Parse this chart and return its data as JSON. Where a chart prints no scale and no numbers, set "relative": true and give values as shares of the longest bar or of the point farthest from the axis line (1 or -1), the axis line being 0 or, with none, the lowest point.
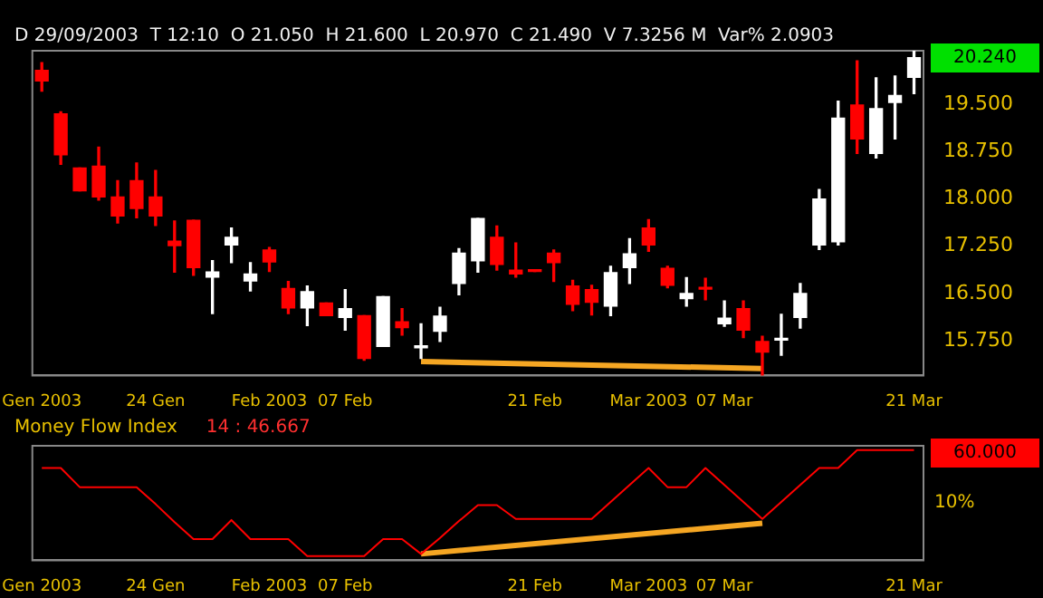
{
  "chart_data": [
    {
      "type": "candlestick",
      "subtitle": "D 29/09/2003  T 12:10  O 21.050  H 21.600  L 20.970  C 21.490  V 7.3256 M  Var% 2.0903",
      "categories": [
        "Gen 2003",
        null,
        null,
        null,
        null,
        null,
        "24 Gen",
        null,
        null,
        null,
        null,
        null,
        "Feb 2003",
        null,
        null,
        null,
        "07 Feb",
        null,
        null,
        null,
        null,
        null,
        null,
        null,
        null,
        null,
        "21 Feb",
        null,
        null,
        null,
        null,
        null,
        "Mar 2003",
        null,
        null,
        null,
        "07 Mar",
        null,
        null,
        null,
        null,
        null,
        null,
        null,
        null,
        null,
        "21 Mar"
      ],
      "ohlc": [
        [
          20.04,
          20.16,
          19.71,
          19.87
        ],
        [
          19.35,
          19.38,
          18.55,
          18.7
        ],
        [
          18.49,
          18.49,
          18.13,
          18.13
        ],
        [
          18.52,
          18.82,
          17.98,
          18.03
        ],
        [
          18.03,
          18.29,
          17.62,
          17.73
        ],
        [
          18.29,
          18.57,
          17.7,
          17.85
        ],
        [
          18.03,
          18.45,
          17.58,
          17.73
        ],
        [
          17.33,
          17.65,
          16.84,
          17.26
        ],
        [
          17.66,
          17.66,
          16.79,
          16.91
        ],
        [
          16.76,
          17.02,
          16.18,
          16.84
        ],
        [
          17.27,
          17.54,
          16.99,
          17.39
        ],
        [
          16.7,
          16.99,
          16.54,
          16.81
        ],
        [
          17.19,
          17.23,
          16.85,
          17.0
        ],
        [
          16.58,
          16.69,
          16.18,
          16.27
        ],
        [
          16.27,
          16.62,
          15.99,
          16.53
        ],
        [
          16.35,
          16.35,
          16.15,
          16.15
        ],
        [
          16.12,
          16.56,
          15.92,
          16.26
        ],
        [
          16.15,
          16.15,
          15.44,
          15.47
        ],
        [
          15.66,
          16.45,
          15.66,
          16.45
        ],
        [
          16.05,
          16.26,
          15.84,
          15.96
        ],
        [
          15.64,
          16.02,
          15.47,
          15.64
        ],
        [
          15.9,
          16.28,
          15.74,
          16.14
        ],
        [
          16.66,
          17.21,
          16.48,
          17.14
        ],
        [
          17.02,
          17.69,
          16.84,
          17.69
        ],
        [
          17.39,
          17.57,
          16.87,
          16.96
        ],
        [
          16.87,
          17.3,
          16.76,
          16.81
        ],
        [
          16.86,
          16.86,
          16.85,
          16.85
        ],
        [
          17.14,
          17.19,
          16.69,
          16.99
        ],
        [
          16.62,
          16.71,
          16.23,
          16.33
        ],
        [
          16.56,
          16.63,
          16.16,
          16.36
        ],
        [
          16.3,
          16.93,
          16.15,
          16.83
        ],
        [
          16.91,
          17.37,
          16.66,
          17.13
        ],
        [
          17.54,
          17.67,
          17.17,
          17.27
        ],
        [
          16.9,
          16.93,
          16.59,
          16.63
        ],
        [
          16.42,
          16.75,
          16.3,
          16.5
        ],
        [
          16.58,
          16.74,
          16.4,
          16.57
        ],
        [
          16.02,
          16.38,
          15.98,
          16.11
        ],
        [
          16.26,
          16.38,
          15.8,
          15.92
        ],
        [
          15.74,
          15.82,
          15.19,
          15.57
        ],
        [
          15.76,
          16.17,
          15.52,
          15.76
        ],
        [
          16.12,
          16.66,
          15.95,
          16.5
        ],
        [
          17.27,
          18.15,
          17.2,
          18.0
        ],
        [
          17.32,
          19.55,
          17.27,
          19.28
        ],
        [
          19.49,
          20.19,
          18.72,
          18.95
        ],
        [
          18.72,
          19.92,
          18.65,
          19.43
        ],
        [
          19.53,
          19.95,
          18.95,
          19.64
        ],
        [
          19.93,
          20.34,
          19.67,
          20.24
        ]
      ],
      "colors": [
        "#ff0000",
        "#ff0000",
        "#ff0000",
        "#ff0000",
        "#ff0000",
        "#ff0000",
        "#ff0000",
        "#ff0000",
        "#ff0000",
        "#ffffff",
        "#ffffff",
        "#ffffff",
        "#ff0000",
        "#ff0000",
        "#ffffff",
        "#ff0000",
        "#ffffff",
        "#ff0000",
        "#ffffff",
        "#ff0000",
        "#ffffff",
        "#ffffff",
        "#ffffff",
        "#ffffff",
        "#ff0000",
        "#ff0000",
        "#ff0000",
        "#ff0000",
        "#ff0000",
        "#ff0000",
        "#ffffff",
        "#ffffff",
        "#ff0000",
        "#ff0000",
        "#ffffff",
        "#ff0000",
        "#ffffff",
        "#ff0000",
        "#ff0000",
        "#ffffff",
        "#ffffff",
        "#ffffff",
        "#ffffff",
        "#ff0000",
        "#ffffff",
        "#ffffff",
        "#ffffff"
      ],
      "series": [
        {
          "type": "line",
          "color": "#f5a623",
          "values": [
            null,
            null,
            null,
            null,
            null,
            null,
            null,
            null,
            null,
            null,
            null,
            null,
            null,
            null,
            null,
            null,
            null,
            null,
            null,
            null,
            15.42,
            null,
            null,
            null,
            null,
            null,
            null,
            null,
            null,
            null,
            null,
            null,
            null,
            null,
            null,
            null,
            null,
            null,
            15.31,
            null,
            null,
            null,
            null,
            null,
            null,
            null,
            null
          ]
        }
      ],
      "ylim": [
        15.2,
        20.35
      ],
      "yticks": [
        {
          "value": 15.75,
          "label": "15.750"
        },
        {
          "value": 16.5,
          "label": "16.500"
        },
        {
          "value": 17.25,
          "label": "17.250"
        },
        {
          "value": 18,
          "label": "18.000"
        },
        {
          "value": 18.75,
          "label": "18.750"
        },
        {
          "value": 19.5,
          "label": "19.500"
        }
      ],
      "annotations": [
        "20.240"
      ]
    },
    {
      "type": "line",
      "title": "Money Flow Index",
      "subtitle": "14 : 46.667",
      "relative": true,
      "categories": [
        "Gen 2003",
        null,
        null,
        null,
        null,
        null,
        "24 Gen",
        null,
        null,
        null,
        null,
        null,
        "Feb 2003",
        null,
        null,
        null,
        "07 Feb",
        null,
        null,
        null,
        null,
        null,
        null,
        null,
        null,
        null,
        "21 Feb",
        null,
        null,
        null,
        null,
        null,
        "Mar 2003",
        null,
        null,
        null,
        "07 Mar",
        null,
        null,
        null,
        null,
        null,
        null,
        null,
        null,
        null,
        "21 Mar"
      ],
      "series": [
        {
          "color": "#ff0000",
          "values": [
            0.83,
            0.83,
            0.65,
            0.65,
            0.65,
            0.65,
            0.49,
            0.32,
            0.16,
            0.16,
            0.34,
            0.16,
            0.16,
            0.16,
            0,
            0,
            0,
            0,
            0.16,
            0.16,
            0.02,
            0.17,
            0.33,
            0.48,
            0.48,
            0.35,
            0.35,
            0.35,
            0.35,
            0.35,
            0.51,
            0.67,
            0.83,
            0.65,
            0.65,
            0.83,
            0.67,
            0.51,
            0.35,
            0.51,
            0.67,
            0.83,
            0.83,
            1,
            1,
            1,
            1
          ]
        },
        {
          "color": "#f5a623",
          "values": [
            null,
            null,
            null,
            null,
            null,
            null,
            null,
            null,
            null,
            null,
            null,
            null,
            null,
            null,
            null,
            null,
            null,
            null,
            null,
            null,
            0.02,
            null,
            null,
            null,
            null,
            null,
            null,
            null,
            null,
            null,
            null,
            null,
            null,
            null,
            null,
            null,
            null,
            null,
            0.31,
            null,
            null,
            null,
            null,
            null,
            null,
            null,
            null
          ]
        }
      ],
      "annotations": [
        "60.000",
        "10%"
      ]
    }
  ]
}
